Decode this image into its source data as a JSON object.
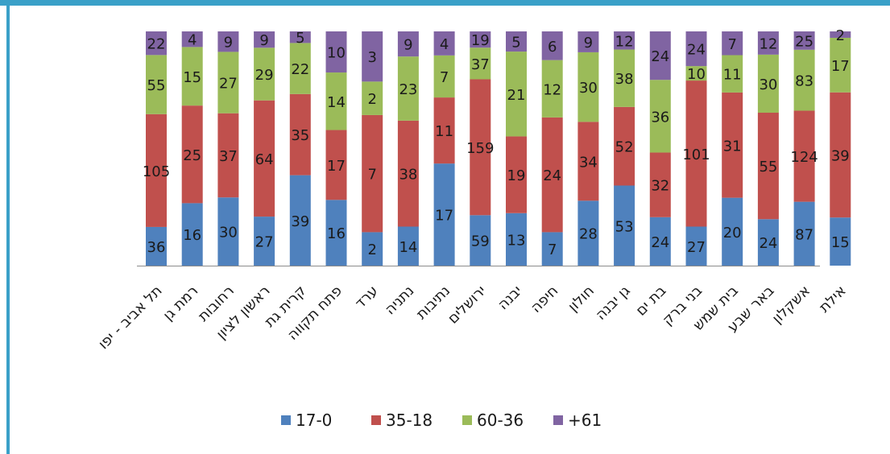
{
  "chart_data": {
    "type": "bar",
    "stacked": true,
    "categories": [
      "תל אביב - יפו",
      "רמת גן",
      "רחובות",
      "ראשון לציון",
      "קרית גת",
      "פתח תקווה",
      "ערד",
      "נתניה",
      "נתיבות",
      "ירושלים",
      "יבנה",
      "חיפה",
      "חולון",
      "גן יבנה",
      "בת ים",
      "בני ברק",
      "בית שמש",
      "באר שבע",
      "אשקלון",
      "אילת"
    ],
    "series": [
      {
        "name": "17-0",
        "color": "#4f81bd",
        "values": [
          36,
          16,
          30,
          27,
          39,
          16,
          2,
          14,
          17,
          59,
          13,
          7,
          28,
          53,
          24,
          27,
          20,
          24,
          87,
          15
        ]
      },
      {
        "name": "35-18",
        "color": "#c0504d",
        "values": [
          105,
          25,
          37,
          64,
          35,
          17,
          7,
          38,
          11,
          159,
          19,
          24,
          34,
          52,
          32,
          101,
          31,
          55,
          124,
          39
        ]
      },
      {
        "name": "60-36",
        "color": "#9bbb59",
        "values": [
          55,
          15,
          27,
          29,
          22,
          14,
          2,
          23,
          7,
          37,
          21,
          12,
          30,
          38,
          36,
          10,
          11,
          30,
          83,
          17
        ]
      },
      {
        "name": "+61",
        "color": "#8064a2",
        "values": [
          22,
          4,
          9,
          9,
          5,
          10,
          3,
          9,
          4,
          19,
          5,
          6,
          9,
          12,
          24,
          24,
          7,
          12,
          25,
          2
        ]
      }
    ],
    "percent_stacked": true,
    "grid": false,
    "legend_position": "bottom"
  }
}
